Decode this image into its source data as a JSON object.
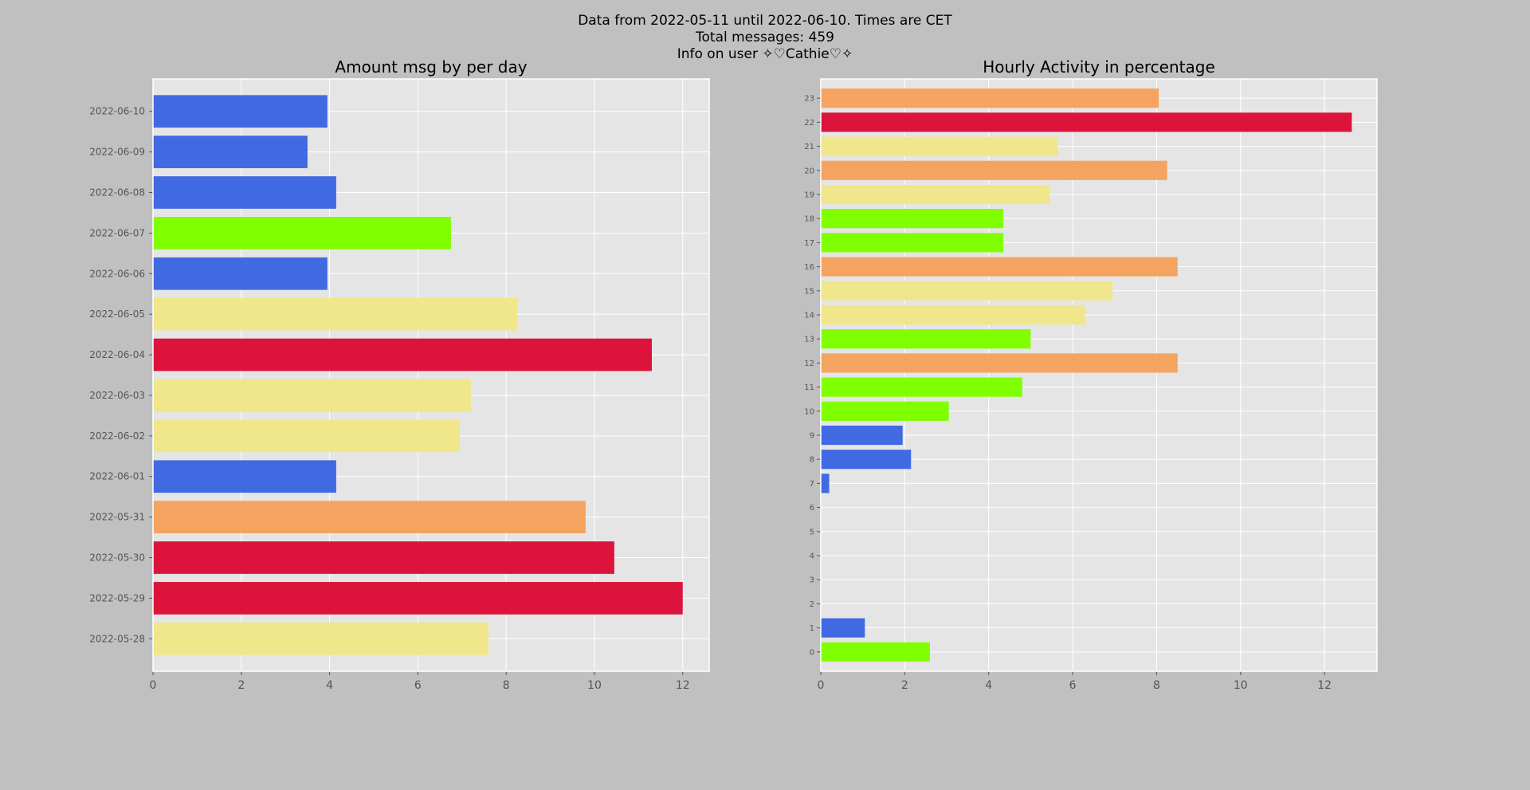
{
  "header": {
    "line1": "Data from 2022-05-11 until 2022-06-10. Times are CET",
    "line2": "Total messages: 459",
    "line3": "Info on user ✧♡Cathie♡✧"
  },
  "colors": {
    "figure_bg": "#c0c0c0",
    "axes_bg": "#e5e5e5",
    "grid": "#ffffff",
    "blue": "#4169e1",
    "green": "#7fff00",
    "khaki": "#f0e68c",
    "orange": "#f4a460",
    "red": "#dc143c"
  },
  "chart_data": [
    {
      "type": "bar",
      "orientation": "horizontal",
      "title": "Amount msg by per day",
      "xlabel": "",
      "ylabel": "",
      "xlim": [
        0,
        12.6
      ],
      "xticks": [
        "0",
        "2",
        "4",
        "6",
        "8",
        "10",
        "12"
      ],
      "grid": true,
      "categories": [
        "2022-05-28",
        "2022-05-29",
        "2022-05-30",
        "2022-05-31",
        "2022-06-01",
        "2022-06-02",
        "2022-06-03",
        "2022-06-04",
        "2022-06-05",
        "2022-06-06",
        "2022-06-07",
        "2022-06-08",
        "2022-06-09",
        "2022-06-10"
      ],
      "values": [
        7.6,
        12.0,
        10.45,
        9.8,
        4.15,
        6.95,
        7.2,
        11.3,
        8.25,
        3.95,
        6.75,
        4.15,
        3.5,
        3.95
      ],
      "bar_colors": [
        "khaki",
        "red",
        "red",
        "orange",
        "blue",
        "khaki",
        "khaki",
        "red",
        "khaki",
        "blue",
        "green",
        "blue",
        "blue",
        "blue"
      ]
    },
    {
      "type": "bar",
      "orientation": "horizontal",
      "title": "Hourly Activity in percentage",
      "xlabel": "",
      "ylabel": "",
      "xlim": [
        0,
        13.25
      ],
      "xticks": [
        "0",
        "2",
        "4",
        "6",
        "8",
        "10",
        "12"
      ],
      "grid": true,
      "categories": [
        "0",
        "1",
        "2",
        "3",
        "4",
        "5",
        "6",
        "7",
        "8",
        "9",
        "10",
        "11",
        "12",
        "13",
        "14",
        "15",
        "16",
        "17",
        "18",
        "19",
        "20",
        "21",
        "22",
        "23"
      ],
      "values": [
        2.6,
        1.05,
        0,
        0,
        0,
        0,
        0,
        0.2,
        2.15,
        1.95,
        3.05,
        4.8,
        8.5,
        5.0,
        6.3,
        6.95,
        8.5,
        4.35,
        4.35,
        5.45,
        8.25,
        5.65,
        12.65,
        8.05
      ],
      "bar_colors": [
        "green",
        "blue",
        "blue",
        "blue",
        "blue",
        "blue",
        "blue",
        "blue",
        "blue",
        "blue",
        "green",
        "green",
        "orange",
        "green",
        "khaki",
        "khaki",
        "orange",
        "green",
        "green",
        "khaki",
        "orange",
        "khaki",
        "red",
        "orange"
      ]
    }
  ]
}
